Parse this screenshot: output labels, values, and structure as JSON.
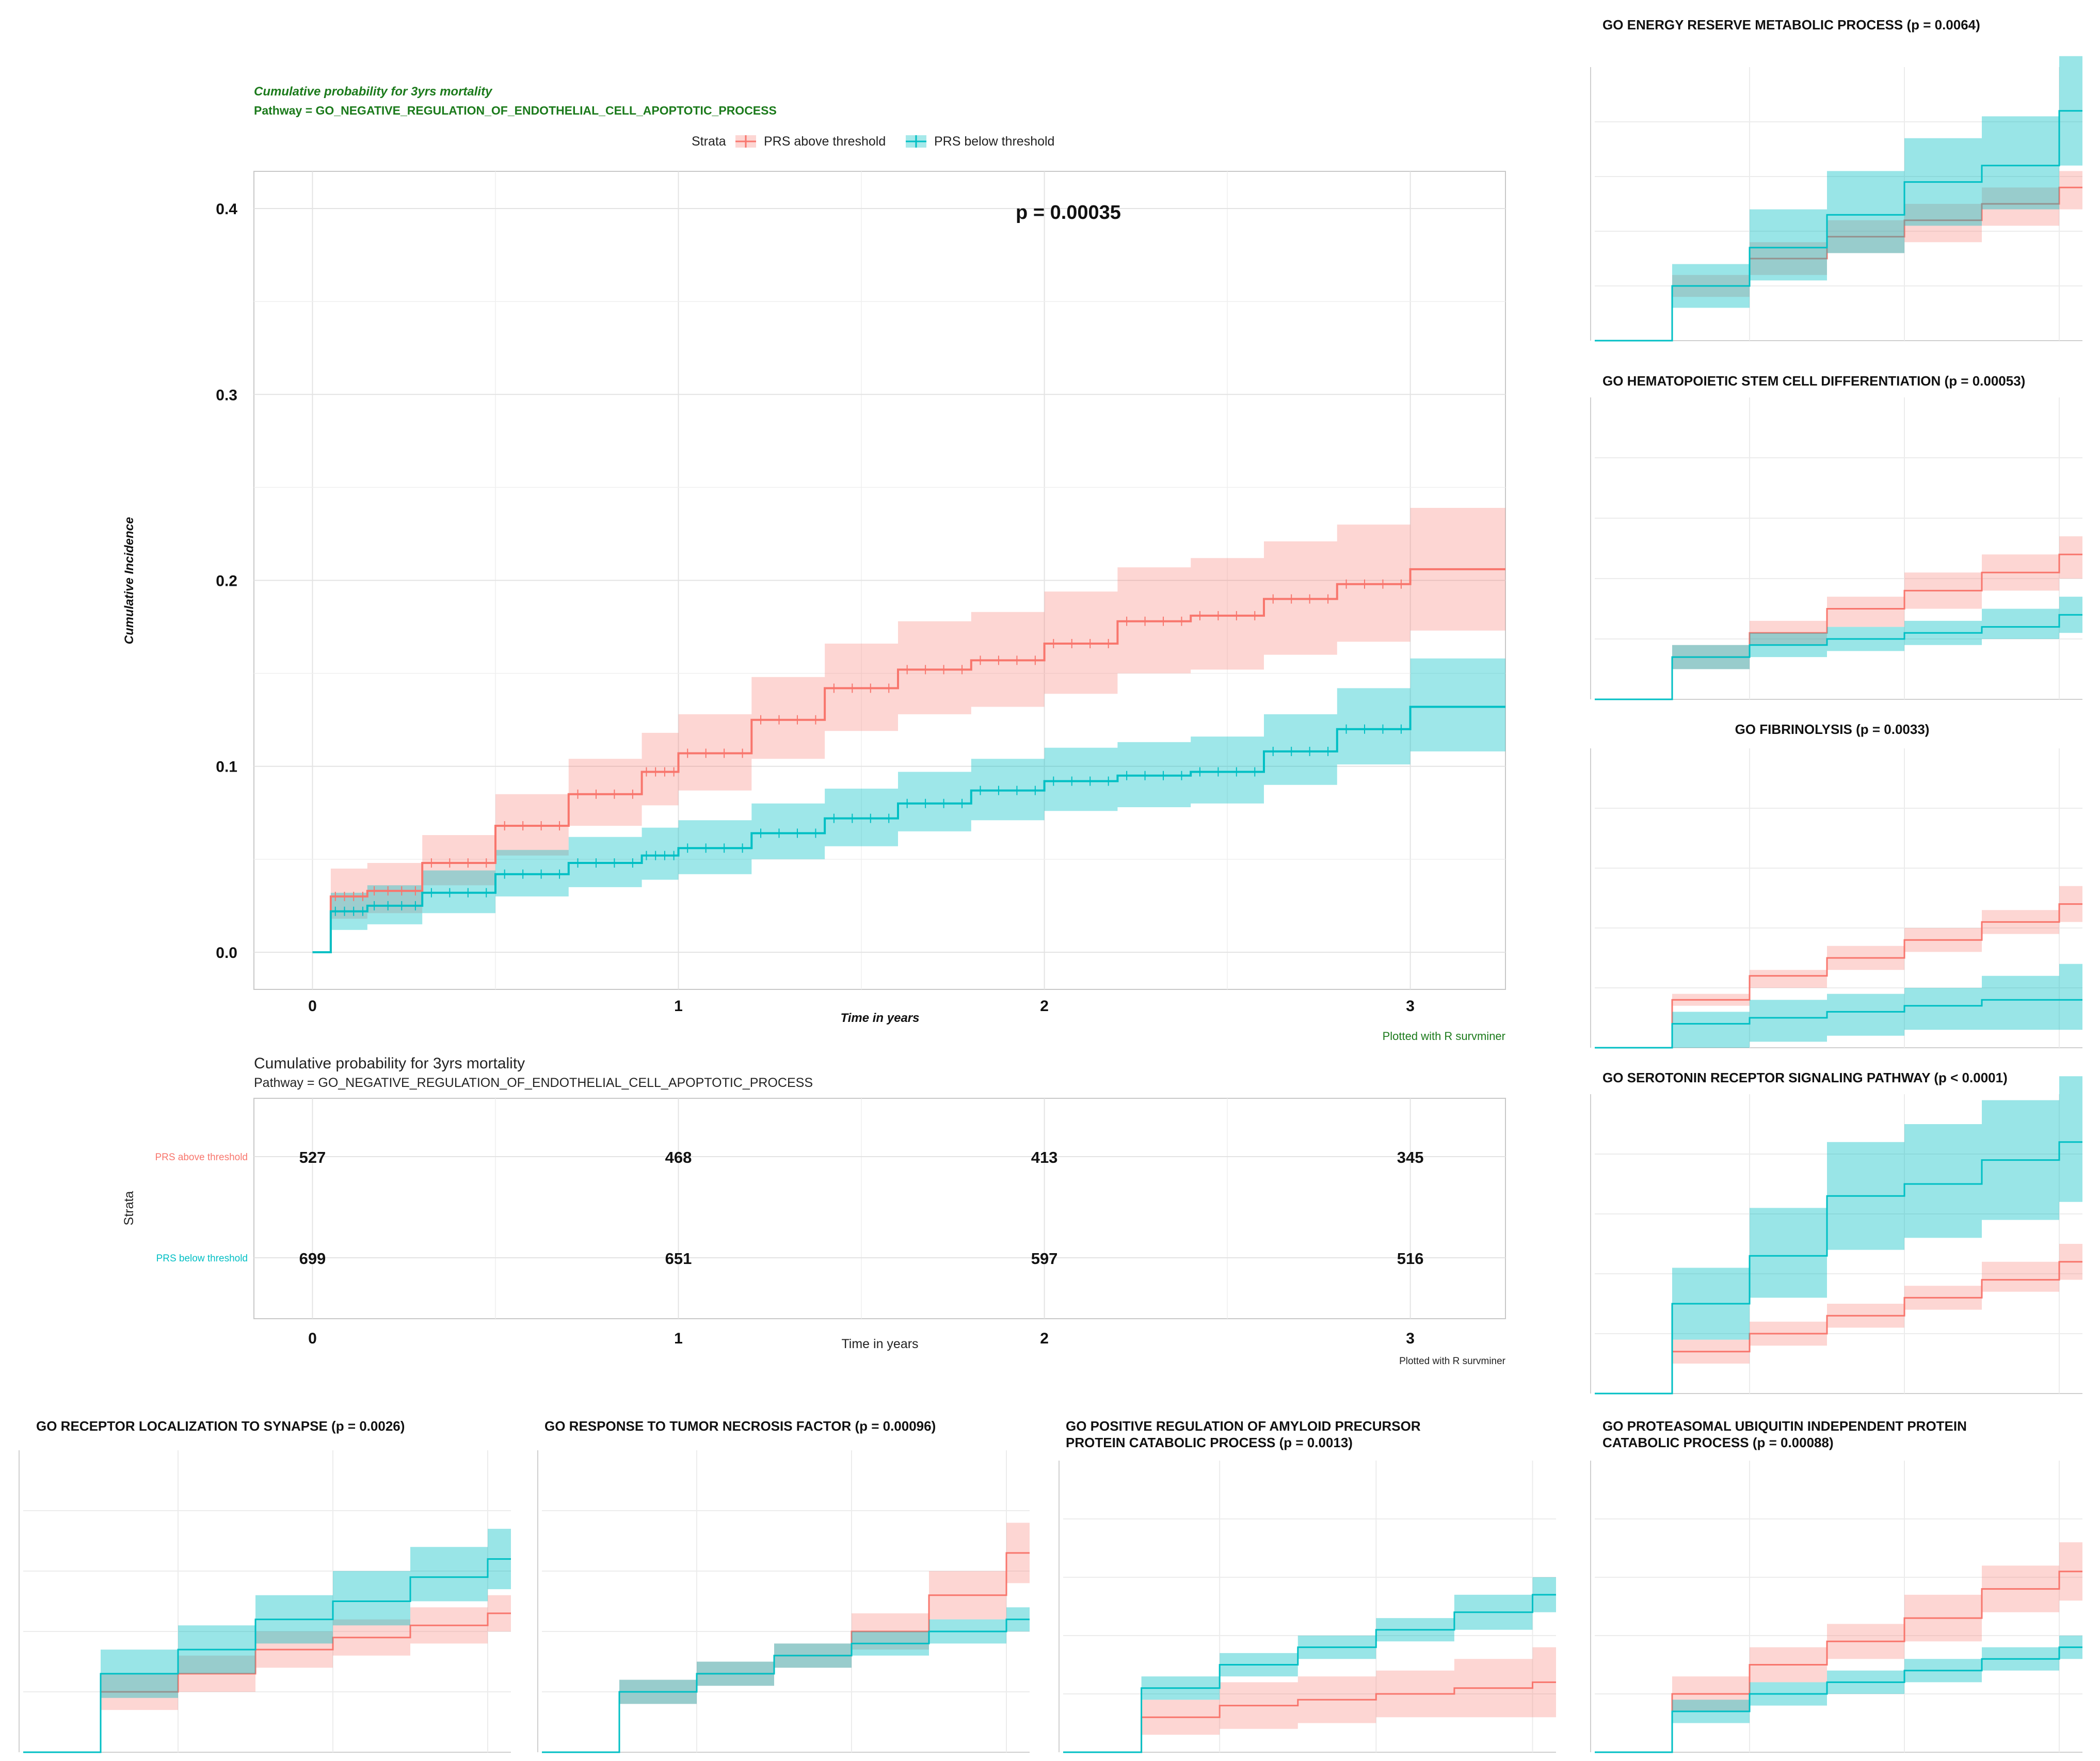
{
  "colors": {
    "above": "#f8766d",
    "above_band": "#f8766d",
    "below": "#00bfc4",
    "below_band": "#00bfc4",
    "title_green": "#1b7a1b",
    "grid": "#e3e3e3",
    "text": "#222222"
  },
  "chart_data": [
    {
      "id": "main",
      "type": "line",
      "title": "Cumulative probability for 3yrs mortality",
      "subtitle": "Pathway =  GO_NEGATIVE_REGULATION_OF_ENDOTHELIAL_CELL_APOPTOTIC_PROCESS",
      "legend_title": "Strata",
      "legend_position": "top",
      "xlabel": "Time in years",
      "ylabel": "Cumulative Incidence",
      "xlim": [
        -0.16,
        3.26
      ],
      "ylim": [
        -0.02,
        0.42
      ],
      "xticks": [
        "0",
        "1",
        "2",
        "3"
      ],
      "yticks": [
        "0.0",
        "0.1",
        "0.2",
        "0.3",
        "0.4"
      ],
      "pvalue": "p = 0.00035",
      "caption": "Plotted with R survminer",
      "series": [
        {
          "name": "PRS above threshold",
          "x": [
            0,
            0.05,
            0.15,
            0.3,
            0.5,
            0.7,
            0.9,
            1.0,
            1.2,
            1.4,
            1.6,
            1.8,
            2.0,
            2.2,
            2.4,
            2.6,
            2.8,
            3.0,
            3.26
          ],
          "y": [
            0,
            0.03,
            0.033,
            0.048,
            0.068,
            0.085,
            0.097,
            0.107,
            0.125,
            0.142,
            0.152,
            0.157,
            0.166,
            0.178,
            0.181,
            0.19,
            0.198,
            0.206,
            0.206
          ],
          "lower": [
            0,
            0.018,
            0.021,
            0.036,
            0.052,
            0.068,
            0.079,
            0.087,
            0.104,
            0.119,
            0.128,
            0.132,
            0.139,
            0.15,
            0.152,
            0.16,
            0.167,
            0.173,
            0.173
          ],
          "upper": [
            0,
            0.045,
            0.048,
            0.063,
            0.085,
            0.104,
            0.118,
            0.128,
            0.148,
            0.166,
            0.178,
            0.183,
            0.194,
            0.207,
            0.212,
            0.221,
            0.23,
            0.239,
            0.239
          ]
        },
        {
          "name": "PRS below threshold",
          "x": [
            0,
            0.05,
            0.15,
            0.3,
            0.5,
            0.7,
            0.9,
            1.0,
            1.2,
            1.4,
            1.6,
            1.8,
            2.0,
            2.2,
            2.4,
            2.6,
            2.8,
            3.0,
            3.26
          ],
          "y": [
            0,
            0.022,
            0.025,
            0.032,
            0.042,
            0.048,
            0.052,
            0.056,
            0.064,
            0.072,
            0.08,
            0.087,
            0.092,
            0.095,
            0.097,
            0.108,
            0.12,
            0.132,
            0.132
          ],
          "lower": [
            0,
            0.012,
            0.015,
            0.021,
            0.03,
            0.035,
            0.039,
            0.042,
            0.05,
            0.057,
            0.065,
            0.071,
            0.076,
            0.078,
            0.08,
            0.09,
            0.101,
            0.108,
            0.108
          ],
          "upper": [
            0,
            0.032,
            0.036,
            0.044,
            0.055,
            0.062,
            0.067,
            0.071,
            0.08,
            0.088,
            0.097,
            0.104,
            0.11,
            0.113,
            0.116,
            0.128,
            0.142,
            0.158,
            0.158
          ]
        }
      ]
    },
    {
      "id": "risk-table",
      "type": "table",
      "title": "Cumulative probability for 3yrs mortality",
      "subtitle": "Pathway =  GO_NEGATIVE_REGULATION_OF_ENDOTHELIAL_CELL_APOPTOTIC_PROCESS",
      "xlabel": "Time in years",
      "ylabel": "Strata",
      "caption": "Plotted with R survminer",
      "columns": [
        "0",
        "1",
        "2",
        "3"
      ],
      "rows": [
        {
          "name": "PRS above threshold",
          "values": [
            "527",
            "468",
            "413",
            "345"
          ]
        },
        {
          "name": "PRS below threshold",
          "values": [
            "699",
            "651",
            "597",
            "516"
          ]
        }
      ]
    },
    {
      "id": "energy",
      "type": "line",
      "title": [
        "GO ENERGY RESERVE METABOLIC PROCESS (p = 0.0064)"
      ],
      "x": [
        0,
        0.5,
        1.0,
        1.5,
        2.0,
        2.5,
        3.0
      ],
      "ylim": [
        0,
        0.5
      ],
      "series": [
        {
          "name": "PRS above threshold",
          "y": [
            0,
            0.1,
            0.15,
            0.19,
            0.22,
            0.25,
            0.28
          ],
          "lower": [
            0,
            0.08,
            0.12,
            0.16,
            0.18,
            0.21,
            0.24
          ],
          "upper": [
            0,
            0.12,
            0.18,
            0.22,
            0.25,
            0.28,
            0.31
          ]
        },
        {
          "name": "PRS below threshold",
          "y": [
            0,
            0.1,
            0.17,
            0.23,
            0.29,
            0.32,
            0.42
          ],
          "lower": [
            0,
            0.06,
            0.11,
            0.16,
            0.21,
            0.24,
            0.32
          ],
          "upper": [
            0,
            0.14,
            0.24,
            0.31,
            0.37,
            0.41,
            0.52
          ]
        }
      ]
    },
    {
      "id": "hematopoietic",
      "type": "line",
      "title": [
        "GO HEMATOPOIETIC STEM CELL DIFFERENTIATION (p = 0.00053)"
      ],
      "x": [
        0,
        0.5,
        1.0,
        1.5,
        2.0,
        2.5,
        3.0
      ],
      "ylim": [
        0,
        0.5
      ],
      "series": [
        {
          "name": "PRS above threshold",
          "y": [
            0,
            0.07,
            0.11,
            0.15,
            0.18,
            0.21,
            0.24
          ],
          "lower": [
            0,
            0.05,
            0.09,
            0.12,
            0.15,
            0.18,
            0.2
          ],
          "upper": [
            0,
            0.09,
            0.13,
            0.17,
            0.21,
            0.24,
            0.27
          ]
        },
        {
          "name": "PRS below threshold",
          "y": [
            0,
            0.07,
            0.09,
            0.1,
            0.11,
            0.12,
            0.14
          ],
          "lower": [
            0,
            0.05,
            0.07,
            0.08,
            0.09,
            0.1,
            0.11
          ],
          "upper": [
            0,
            0.09,
            0.11,
            0.12,
            0.13,
            0.15,
            0.17
          ]
        }
      ]
    },
    {
      "id": "fibrinolysis",
      "type": "line",
      "title": [
        "GO FIBRINOLYSIS (p = 0.0033)"
      ],
      "x": [
        0,
        0.5,
        1.0,
        1.5,
        2.0,
        2.5,
        3.0
      ],
      "ylim": [
        0,
        0.5
      ],
      "series": [
        {
          "name": "PRS above threshold",
          "y": [
            0,
            0.08,
            0.12,
            0.15,
            0.18,
            0.21,
            0.24
          ],
          "lower": [
            0,
            0.07,
            0.1,
            0.13,
            0.16,
            0.19,
            0.21
          ],
          "upper": [
            0,
            0.09,
            0.13,
            0.17,
            0.2,
            0.23,
            0.27
          ]
        },
        {
          "name": "PRS below threshold",
          "y": [
            0,
            0.04,
            0.05,
            0.06,
            0.07,
            0.08,
            0.08
          ],
          "lower": [
            0,
            0.0,
            0.01,
            0.02,
            0.03,
            0.03,
            0.03
          ],
          "upper": [
            0,
            0.06,
            0.08,
            0.09,
            0.1,
            0.12,
            0.14
          ]
        }
      ]
    },
    {
      "id": "serotonin",
      "type": "line",
      "title": [
        "GO SEROTONIN RECEPTOR SIGNALING PATHWAY (p < 0.0001)"
      ],
      "x": [
        0,
        0.5,
        1.0,
        1.5,
        2.0,
        2.5,
        3.0
      ],
      "ylim": [
        0,
        0.5
      ],
      "series": [
        {
          "name": "PRS above threshold",
          "y": [
            0,
            0.07,
            0.1,
            0.13,
            0.16,
            0.19,
            0.22
          ],
          "lower": [
            0,
            0.05,
            0.08,
            0.11,
            0.14,
            0.17,
            0.19
          ],
          "upper": [
            0,
            0.09,
            0.12,
            0.15,
            0.18,
            0.22,
            0.25
          ]
        },
        {
          "name": "PRS below threshold",
          "y": [
            0,
            0.15,
            0.23,
            0.33,
            0.35,
            0.39,
            0.42
          ],
          "lower": [
            0,
            0.09,
            0.16,
            0.24,
            0.26,
            0.29,
            0.32
          ],
          "upper": [
            0,
            0.21,
            0.31,
            0.42,
            0.45,
            0.49,
            0.53
          ]
        }
      ]
    },
    {
      "id": "receptor-localization",
      "type": "line",
      "title": [
        "GO RECEPTOR LOCALIZATION TO SYNAPSE (p = 0.0026)"
      ],
      "x": [
        0,
        0.5,
        1.0,
        1.5,
        2.0,
        2.5,
        3.0
      ],
      "ylim": [
        0,
        0.5
      ],
      "series": [
        {
          "name": "PRS above threshold",
          "y": [
            0,
            0.1,
            0.13,
            0.17,
            0.19,
            0.21,
            0.23
          ],
          "lower": [
            0,
            0.07,
            0.1,
            0.14,
            0.16,
            0.18,
            0.2
          ],
          "upper": [
            0,
            0.13,
            0.16,
            0.2,
            0.22,
            0.24,
            0.26
          ]
        },
        {
          "name": "PRS below threshold",
          "y": [
            0,
            0.13,
            0.17,
            0.22,
            0.25,
            0.29,
            0.32
          ],
          "lower": [
            0,
            0.09,
            0.13,
            0.18,
            0.21,
            0.25,
            0.27
          ],
          "upper": [
            0,
            0.17,
            0.21,
            0.26,
            0.3,
            0.34,
            0.37
          ]
        }
      ]
    },
    {
      "id": "tumor-necrosis",
      "type": "line",
      "title": [
        "GO RESPONSE TO TUMOR NECROSIS FACTOR (p = 0.00096)"
      ],
      "x": [
        0,
        0.5,
        1.0,
        1.5,
        2.0,
        2.5,
        3.0
      ],
      "ylim": [
        0,
        0.5
      ],
      "series": [
        {
          "name": "PRS above threshold",
          "y": [
            0,
            0.1,
            0.13,
            0.16,
            0.2,
            0.26,
            0.33
          ],
          "lower": [
            0,
            0.08,
            0.11,
            0.14,
            0.17,
            0.22,
            0.28
          ],
          "upper": [
            0,
            0.12,
            0.15,
            0.18,
            0.23,
            0.3,
            0.38
          ]
        },
        {
          "name": "PRS below threshold",
          "y": [
            0,
            0.1,
            0.13,
            0.16,
            0.18,
            0.2,
            0.22
          ],
          "lower": [
            0,
            0.08,
            0.11,
            0.14,
            0.16,
            0.18,
            0.2
          ],
          "upper": [
            0,
            0.12,
            0.15,
            0.18,
            0.2,
            0.22,
            0.24
          ]
        }
      ]
    },
    {
      "id": "amyloid",
      "type": "line",
      "title": [
        "GO POSITIVE REGULATION OF AMYLOID PRECURSOR",
        "PROTEIN CATABOLIC PROCESS (p = 0.0013)"
      ],
      "x": [
        0,
        0.5,
        1.0,
        1.5,
        2.0,
        2.5,
        3.0
      ],
      "ylim": [
        0,
        0.5
      ],
      "series": [
        {
          "name": "PRS above threshold",
          "y": [
            0,
            0.06,
            0.08,
            0.09,
            0.1,
            0.11,
            0.12
          ],
          "lower": [
            0,
            0.03,
            0.04,
            0.05,
            0.06,
            0.06,
            0.06
          ],
          "upper": [
            0,
            0.09,
            0.12,
            0.13,
            0.14,
            0.16,
            0.18
          ]
        },
        {
          "name": "PRS below threshold",
          "y": [
            0,
            0.11,
            0.15,
            0.18,
            0.21,
            0.24,
            0.27
          ],
          "lower": [
            0,
            0.09,
            0.13,
            0.16,
            0.19,
            0.21,
            0.24
          ],
          "upper": [
            0,
            0.13,
            0.17,
            0.2,
            0.23,
            0.27,
            0.3
          ]
        }
      ]
    },
    {
      "id": "proteasomal",
      "type": "line",
      "title": [
        "GO PROTEASOMAL UBIQUITIN INDEPENDENT PROTEIN",
        "CATABOLIC PROCESS (p = 0.00088)"
      ],
      "x": [
        0,
        0.5,
        1.0,
        1.5,
        2.0,
        2.5,
        3.0
      ],
      "ylim": [
        0,
        0.5
      ],
      "series": [
        {
          "name": "PRS above threshold",
          "y": [
            0,
            0.1,
            0.15,
            0.19,
            0.23,
            0.28,
            0.31
          ],
          "lower": [
            0,
            0.07,
            0.12,
            0.16,
            0.19,
            0.24,
            0.26
          ],
          "upper": [
            0,
            0.13,
            0.18,
            0.22,
            0.27,
            0.32,
            0.36
          ]
        },
        {
          "name": "PRS below threshold",
          "y": [
            0,
            0.07,
            0.1,
            0.12,
            0.14,
            0.16,
            0.18
          ],
          "lower": [
            0,
            0.05,
            0.08,
            0.1,
            0.12,
            0.14,
            0.16
          ],
          "upper": [
            0,
            0.09,
            0.12,
            0.14,
            0.16,
            0.18,
            0.2
          ]
        }
      ]
    }
  ]
}
